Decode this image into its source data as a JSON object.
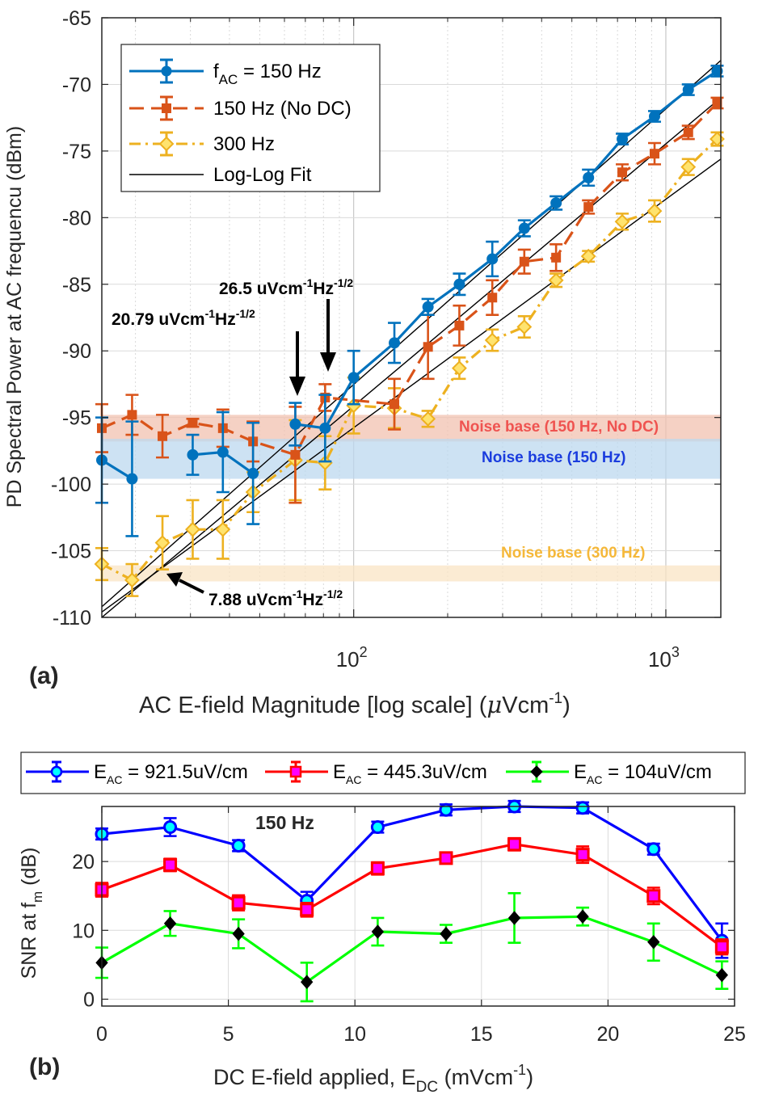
{
  "chart_data": [
    {
      "panel_label": "(a)",
      "type": "line",
      "xscale": "log",
      "xlim": [
        15.6,
        1500
      ],
      "ylim": [
        -110,
        -65
      ],
      "ylabel": "PD Spectral Power at AC frequencu (dBm)",
      "xlabel_main": "AC E-field Magnitude [log scale] (",
      "xlabel_mu": "μ",
      "xlabel_unit": "Vcm",
      "xlabel_exp": "-1",
      "xlabel_close": ")",
      "yticks": [
        -110,
        -105,
        -100,
        -95,
        -90,
        -85,
        -80,
        -75,
        -70,
        -65
      ],
      "xticks": [
        {
          "value": 100,
          "base": "10",
          "exp": "2"
        },
        {
          "value": 1000,
          "base": "10",
          "exp": "3"
        }
      ],
      "series": [
        {
          "name": "f_AC = 150 Hz",
          "legend_main": "f",
          "legend_sub": "AC",
          "legend_rest": " = 150 Hz",
          "color": "#0072BD",
          "marker": "circle",
          "dash": "",
          "x": [
            15.6,
            19.5,
            24.4,
            30.5,
            38.1,
            47.6,
            59.5,
            65,
            81,
            100,
            135,
            173,
            218,
            278,
            352,
            445,
            565,
            725,
            920,
            1180,
            1460
          ],
          "y": [
            -98.2,
            -99.6,
            null,
            -97.8,
            -97.6,
            -99.2,
            null,
            -95.5,
            -95.8,
            -92.0,
            -89.4,
            -86.7,
            -85.0,
            -83.1,
            -80.8,
            -78.9,
            -77.0,
            -74.1,
            -72.4,
            -70.4,
            -69.0
          ],
          "err": [
            3.2,
            4.3,
            null,
            1.5,
            3.0,
            3.8,
            null,
            1.6,
            2.5,
            2.0,
            1.5,
            0.6,
            0.8,
            1.3,
            0.6,
            0.5,
            0.6,
            0.4,
            0.4,
            0.4,
            0.4
          ]
        },
        {
          "name": "150 Hz (No DC)",
          "color": "#D95319",
          "marker": "square",
          "dash": "18,9",
          "x": [
            15.6,
            19.5,
            24.4,
            30.5,
            38.1,
            47.6,
            65,
            81,
            135,
            173,
            218,
            278,
            352,
            445,
            565,
            725,
            920,
            1180,
            1460
          ],
          "y": [
            -95.8,
            -94.8,
            -96.4,
            -95.4,
            -95.8,
            -96.8,
            -97.8,
            -93.5,
            -94.0,
            -89.7,
            -88.1,
            -86.0,
            -83.3,
            -83.0,
            -79.2,
            -76.6,
            -75.2,
            -73.6,
            -71.4
          ],
          "err": [
            1.8,
            1.5,
            1.6,
            0.3,
            1.4,
            1.5,
            3.6,
            1.0,
            1.9,
            2.4,
            1.5,
            1.3,
            0.9,
            1.0,
            0.5,
            0.6,
            0.8,
            0.5,
            0.4
          ]
        },
        {
          "name": "300 Hz",
          "color": "#EDB120",
          "marker": "diamond",
          "dash": "14,6,3,6",
          "x": [
            15.6,
            19.5,
            24.4,
            30.5,
            38.1,
            47.6,
            65,
            81,
            100,
            135,
            173,
            218,
            278,
            352,
            445,
            565,
            725,
            920,
            1180,
            1460
          ],
          "y": [
            -106.0,
            -107.2,
            -104.4,
            -103.4,
            -103.4,
            -100.6,
            -98.2,
            -98.4,
            -94.1,
            -94.3,
            -95.1,
            -91.3,
            -89.2,
            -88.2,
            -84.7,
            -82.9,
            -80.3,
            -79.5,
            -76.2,
            -74.1
          ],
          "err": [
            1.2,
            1.2,
            2.0,
            2.2,
            2.2,
            1.5,
            3.0,
            2.0,
            2.1,
            1.5,
            0.6,
            0.8,
            0.8,
            0.8,
            0.5,
            0.4,
            0.6,
            0.8,
            0.6,
            0.5
          ]
        },
        {
          "name": "Log-Log Fit",
          "color": "#000000",
          "lines": [
            {
              "x": [
                15.6,
                1500
              ],
              "y": [
                -109.2,
                -68.2
              ]
            },
            {
              "x": [
                15.6,
                1500
              ],
              "y": [
                -110.0,
                -71.0
              ]
            },
            {
              "x": [
                15.6,
                1500
              ],
              "y": [
                -109.6,
                -75.6
              ]
            }
          ]
        }
      ],
      "noise_bands": [
        {
          "label": "Noise base (150 Hz, No DC)",
          "y": [
            -96.8,
            -94.8
          ],
          "color": "#f2c2b0",
          "text_color": "#ef5350"
        },
        {
          "label": "Noise base (150 Hz)",
          "y": [
            -99.6,
            -96.6
          ],
          "color": "#bcd8ef",
          "text_color": "#1a3cde"
        },
        {
          "label": "Noise base (300 Hz)",
          "y": [
            -107.3,
            -106.1
          ],
          "color": "#fae4c4",
          "text_color": "#f5b83a"
        }
      ],
      "annotations": [
        {
          "base": "26.5 uVcm",
          "e1": "-1",
          "mid": "Hz",
          "e2": "-1/2"
        },
        {
          "base": "20.79 uVcm",
          "e1": "-1",
          "mid": "Hz",
          "e2": "-1/2"
        },
        {
          "base": "7.88 uVcm",
          "e1": "-1",
          "mid": "Hz",
          "e2": "-1/2"
        }
      ]
    },
    {
      "panel_label": "(b)",
      "type": "line",
      "xlim": [
        0,
        25
      ],
      "ylim": [
        -1,
        28
      ],
      "title": "150 Hz",
      "ylabel_main": "SNR at f",
      "ylabel_sub": "m",
      "ylabel_rest": " (dB)",
      "xlabel_main": "DC E-field applied, E",
      "xlabel_sub": "DC",
      "xlabel_rest": " (mVcm",
      "xlabel_exp": "-1",
      "xlabel_close": ")",
      "xticks": [
        0,
        5,
        10,
        15,
        20,
        25
      ],
      "yticks": [
        0,
        10,
        20
      ],
      "series": [
        {
          "name": "E_AC = 921.5uV/cm",
          "legend_main": "E",
          "legend_sub": "AC",
          "legend_rest": " = 921.5uV/cm",
          "color": "#0000FF",
          "marker_fill": "#00FFFF",
          "marker": "circle",
          "x": [
            0,
            2.7,
            5.4,
            8.1,
            10.9,
            13.6,
            16.3,
            19.0,
            21.8,
            24.5
          ],
          "y": [
            24.0,
            25.0,
            22.3,
            14.3,
            25.0,
            27.5,
            28.0,
            27.8,
            21.8,
            8.5
          ],
          "err": [
            0.8,
            1.3,
            0.8,
            1.3,
            0.8,
            0.8,
            0.8,
            0.8,
            0.8,
            2.5
          ]
        },
        {
          "name": "E_AC = 445.3uV/cm",
          "legend_main": "E",
          "legend_sub": "AC",
          "legend_rest": " = 445.3uV/cm",
          "color": "#FF0000",
          "marker_fill": "#FF00FF",
          "marker": "square",
          "x": [
            0,
            2.7,
            5.4,
            8.1,
            10.9,
            13.6,
            16.3,
            19.0,
            21.8,
            24.5
          ],
          "y": [
            15.9,
            19.5,
            14.0,
            13.0,
            19.0,
            20.5,
            22.5,
            21.0,
            15.0,
            7.6
          ],
          "err": [
            1.0,
            0.9,
            1.1,
            1.0,
            0.9,
            0.8,
            0.9,
            1.2,
            1.2,
            1.1
          ]
        },
        {
          "name": "E_AC = 104uV/cm",
          "legend_main": "E",
          "legend_sub": "AC",
          "legend_rest": " = 104uV/cm",
          "color": "#00FF00",
          "marker_fill": "#000000",
          "marker": "diamond",
          "x": [
            0,
            2.7,
            5.4,
            8.1,
            10.9,
            13.6,
            16.3,
            19.0,
            21.8,
            24.5
          ],
          "y": [
            5.3,
            11.0,
            9.5,
            2.5,
            9.8,
            9.5,
            11.8,
            12.0,
            8.3,
            3.5
          ],
          "err": [
            2.2,
            1.8,
            2.1,
            2.8,
            2.0,
            1.3,
            3.6,
            1.3,
            2.7,
            2.0
          ]
        }
      ]
    }
  ]
}
